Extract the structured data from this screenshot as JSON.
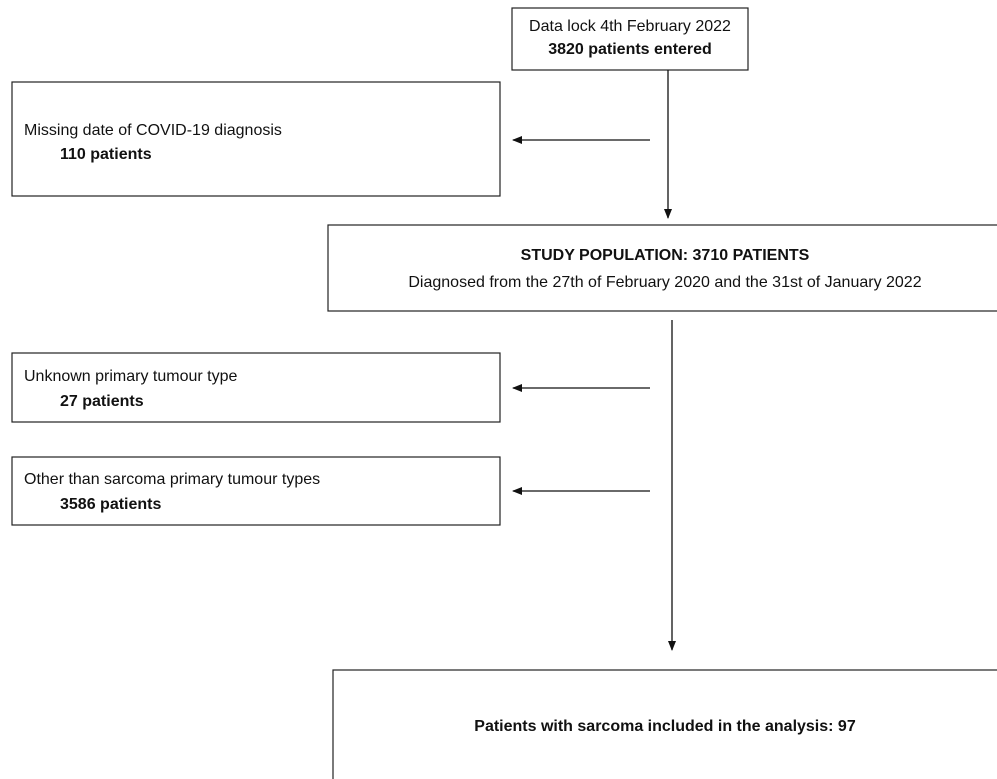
{
  "nodes": [
    {
      "text": "Data lock 4th February 2022",
      "count": "3820 patients entered"
    },
    {
      "text": "Missing date of COVID-19 diagnosis",
      "count": "110 patients"
    },
    {
      "text": "STUDY POPULATION: 3710 PATIENTS",
      "count": "Diagnosed from the 27th of February 2020 and the 31st of January 2022"
    },
    {
      "text": "Unknown primary tumour type",
      "count": "27 patients"
    },
    {
      "text": "Other than sarcoma primary tumour types",
      "count": "3586 patients"
    },
    {
      "text": "Patients with sarcoma included in the analysis: 97"
    }
  ]
}
